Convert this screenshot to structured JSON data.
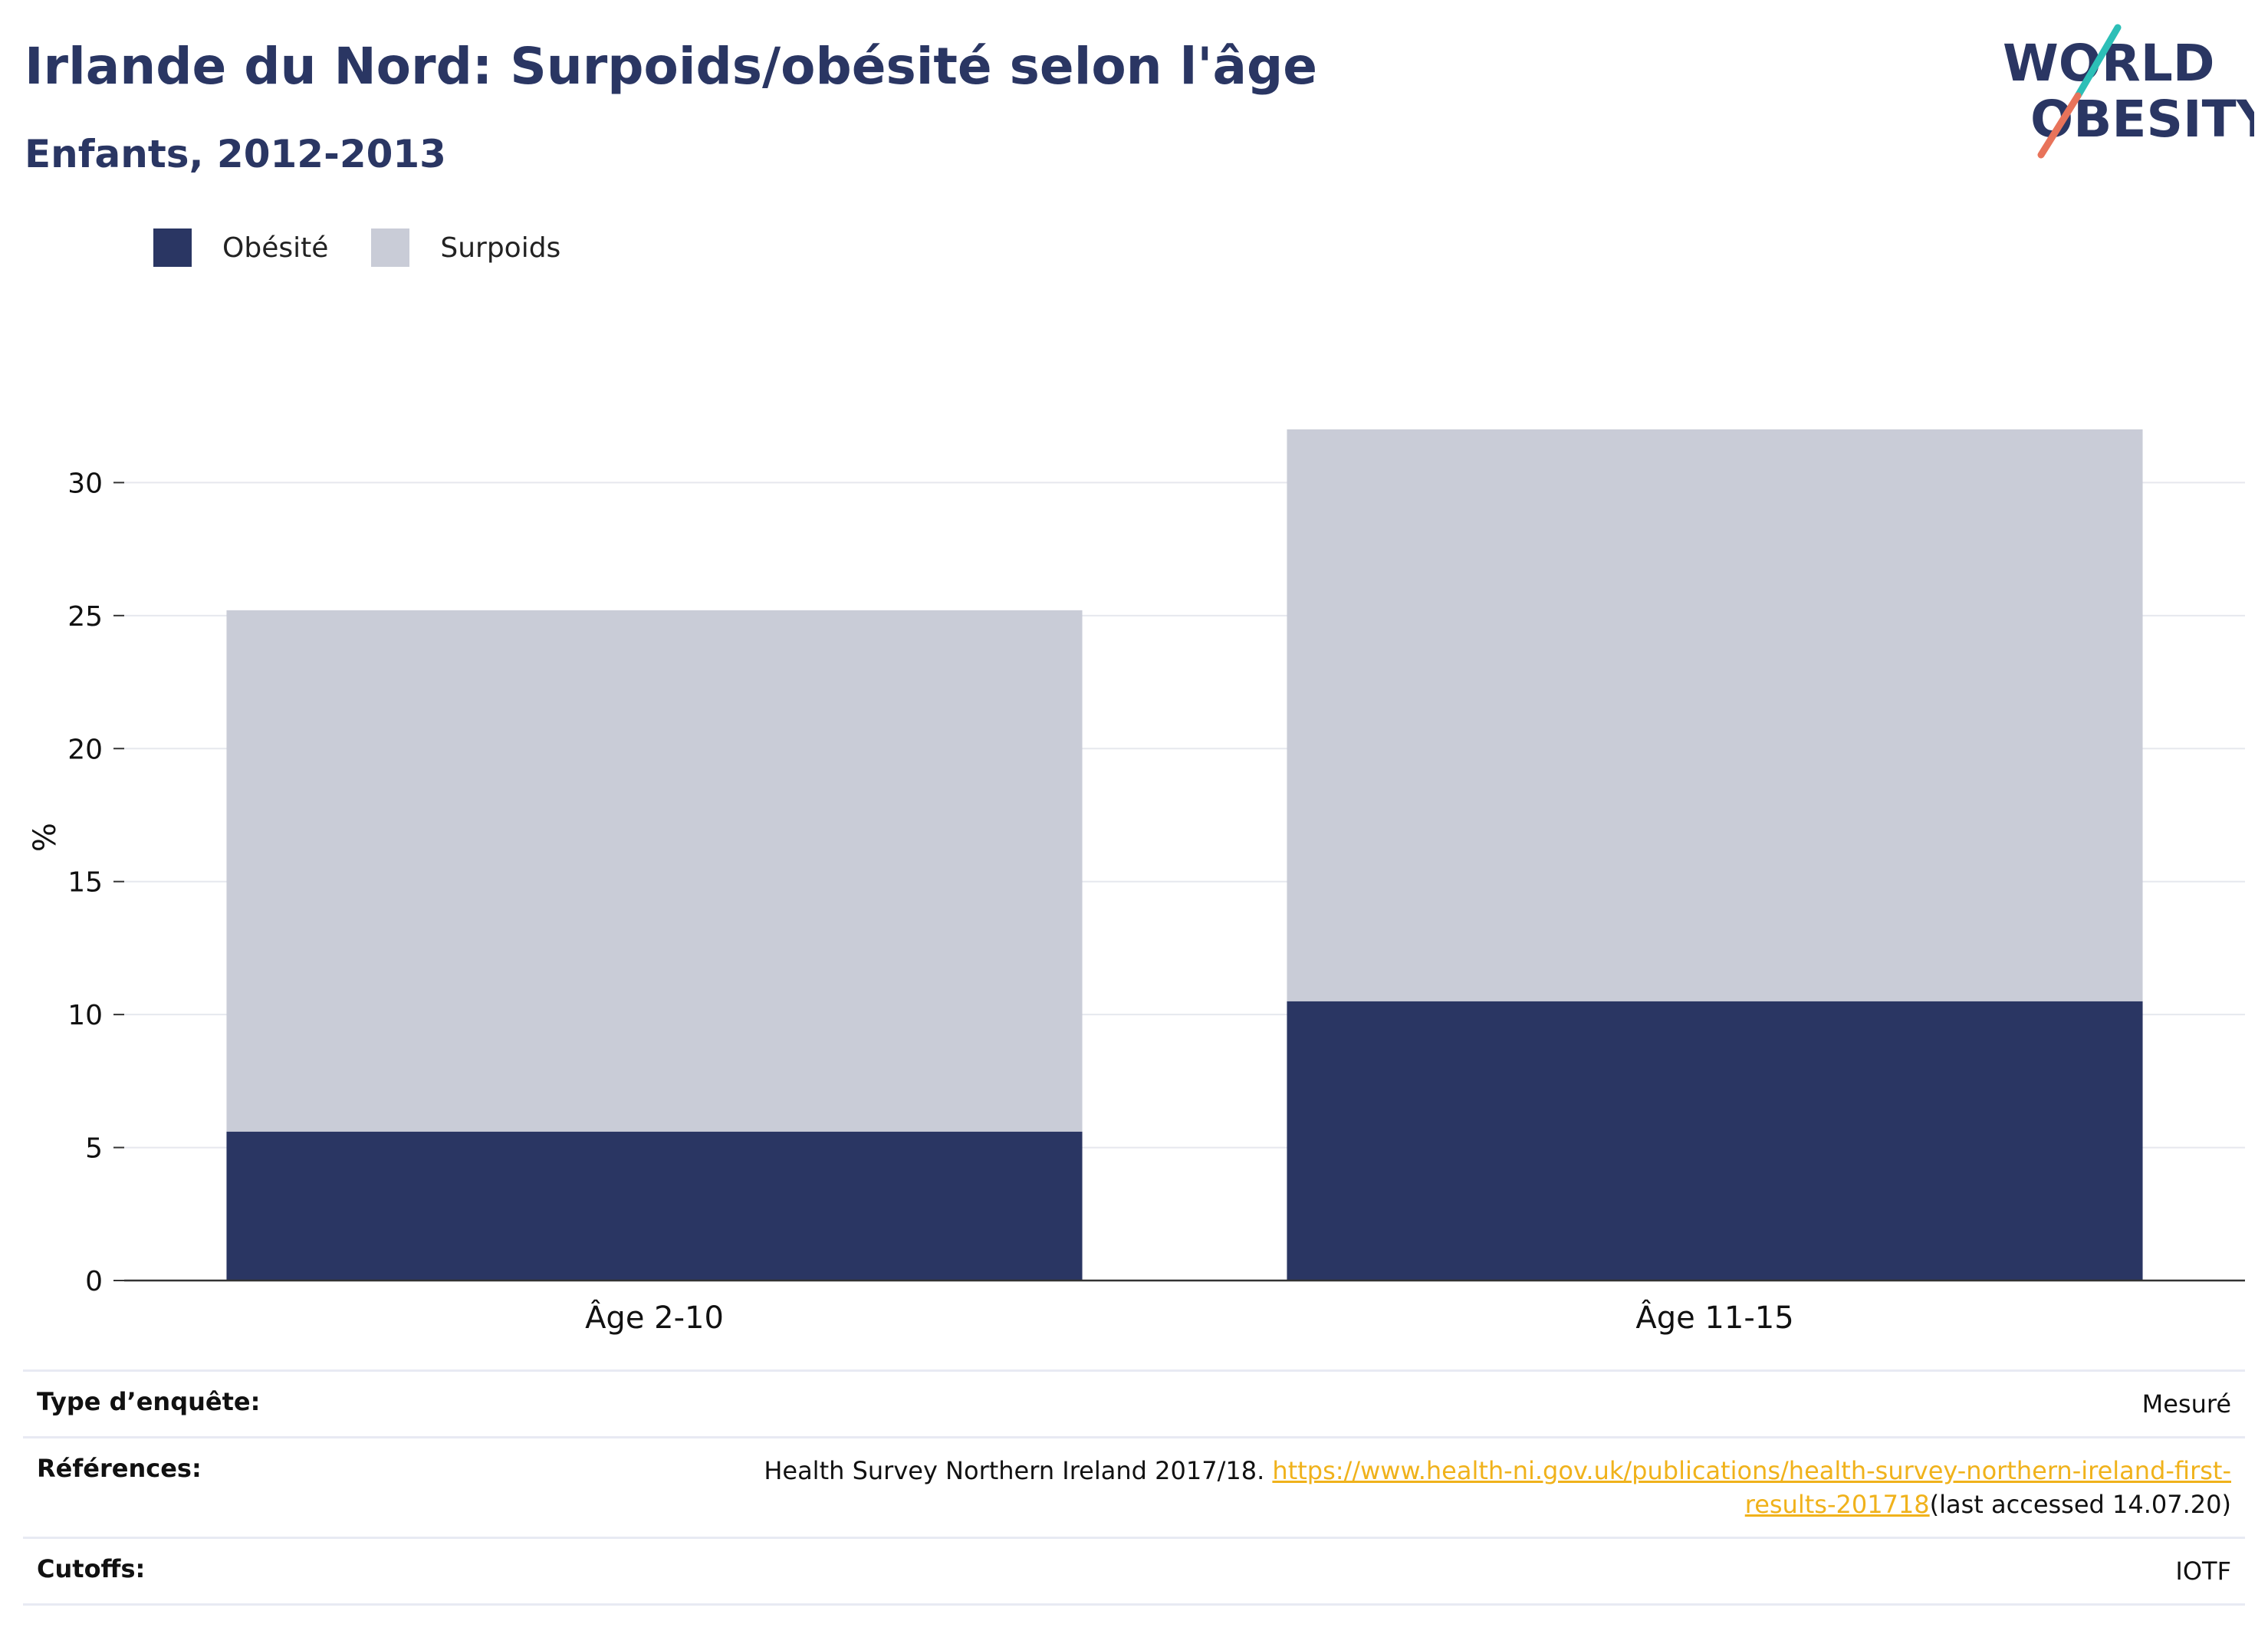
{
  "header": {
    "title": "Irlande du Nord: Surpoids/obésité selon l'âge",
    "subtitle": "Enfants, 2012-2013"
  },
  "logo": {
    "line1": "WORLD",
    "line2": "OBESITY",
    "colors": {
      "text": "#2a3663",
      "slash_top": "#2cbfb7",
      "slash_bottom": "#e8735a"
    }
  },
  "legend": {
    "items": [
      {
        "label": "Obésité",
        "color": "#2a3663"
      },
      {
        "label": "Surpoids",
        "color": "#c9ccd7"
      }
    ]
  },
  "chart_data": {
    "type": "bar",
    "stacked": true,
    "categories": [
      "Âge 2-10",
      "Âge 11-15"
    ],
    "series": [
      {
        "name": "Obésité",
        "values": [
          5.6,
          10.5
        ],
        "color": "#2a3663"
      },
      {
        "name": "Surpoids",
        "values": [
          19.6,
          21.5
        ],
        "color": "#c9ccd7"
      }
    ],
    "ylabel": "%",
    "ylim": [
      0,
      32
    ],
    "yticks": [
      0,
      5,
      10,
      15,
      20,
      25,
      30
    ],
    "grid": true
  },
  "info": {
    "survey_type": {
      "key": "Type d’enquête:",
      "value": "Mesuré"
    },
    "references": {
      "key": "Références:",
      "text_before": "Health Survey Northern Ireland 2017/18. ",
      "link": "https://www.health-ni.gov.uk/publications/health-survey-northern-ireland-first-results-201718",
      "text_after": "(last accessed 14.07.20)"
    },
    "cutoffs": {
      "key": "Cutoffs:",
      "value": "IOTF"
    }
  }
}
